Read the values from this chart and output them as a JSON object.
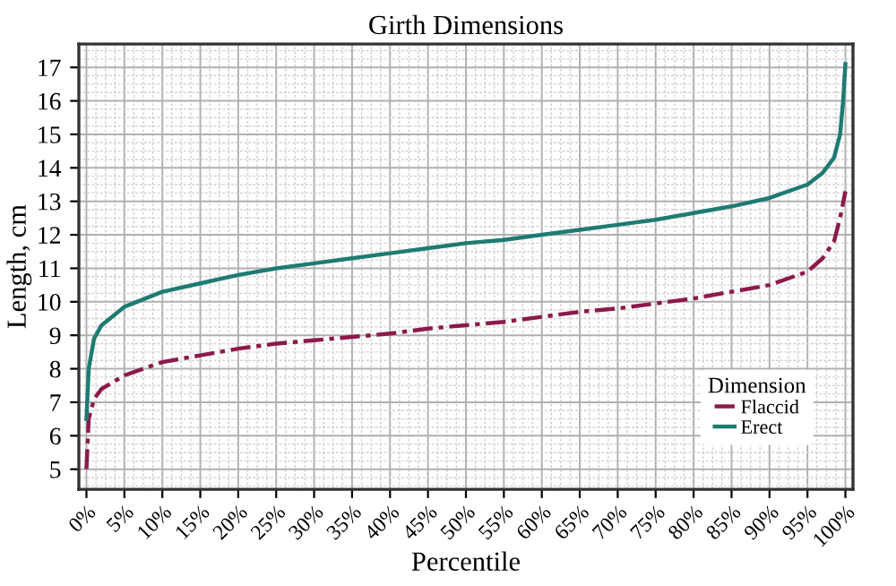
{
  "chart_data": {
    "type": "line",
    "title": "Girth Dimensions",
    "xlabel": "Percentile",
    "ylabel": "Length, cm",
    "legend_title": "Dimension",
    "xlim": [
      -1,
      101
    ],
    "ylim": [
      4.4,
      17.7
    ],
    "xticks": [
      {
        "value": 0,
        "label": "0%"
      },
      {
        "value": 5,
        "label": "5%"
      },
      {
        "value": 10,
        "label": "10%"
      },
      {
        "value": 15,
        "label": "15%"
      },
      {
        "value": 20,
        "label": "20%"
      },
      {
        "value": 25,
        "label": "25%"
      },
      {
        "value": 30,
        "label": "30%"
      },
      {
        "value": 35,
        "label": "35%"
      },
      {
        "value": 40,
        "label": "40%"
      },
      {
        "value": 45,
        "label": "45%"
      },
      {
        "value": 50,
        "label": "50%"
      },
      {
        "value": 55,
        "label": "55%"
      },
      {
        "value": 60,
        "label": "60%"
      },
      {
        "value": 65,
        "label": "65%"
      },
      {
        "value": 70,
        "label": "70%"
      },
      {
        "value": 75,
        "label": "75%"
      },
      {
        "value": 80,
        "label": "80%"
      },
      {
        "value": 85,
        "label": "85%"
      },
      {
        "value": 90,
        "label": "90%"
      },
      {
        "value": 95,
        "label": "95%"
      },
      {
        "value": 100,
        "label": "100%"
      }
    ],
    "yticks": [
      5,
      6,
      7,
      8,
      9,
      10,
      11,
      12,
      13,
      14,
      15,
      16,
      17
    ],
    "grid": true,
    "legend": "bottom right",
    "series": [
      {
        "name": "Flaccid",
        "color": "#8b1a4a",
        "line_style": "dashed",
        "x": [
          0,
          0.3,
          1,
          2,
          5,
          10,
          15,
          20,
          25,
          30,
          35,
          40,
          45,
          50,
          55,
          60,
          65,
          70,
          75,
          80,
          85,
          90,
          95,
          97,
          98.5,
          99.3,
          100
        ],
        "values": [
          5.0,
          6.5,
          7.1,
          7.4,
          7.8,
          8.2,
          8.4,
          8.6,
          8.75,
          8.85,
          8.95,
          9.05,
          9.2,
          9.3,
          9.4,
          9.55,
          9.7,
          9.8,
          9.95,
          10.1,
          10.3,
          10.5,
          10.9,
          11.3,
          11.8,
          12.5,
          13.3
        ]
      },
      {
        "name": "Erect",
        "color": "#1e7b72",
        "line_style": "solid",
        "x": [
          0,
          0.3,
          1,
          2,
          5,
          10,
          15,
          20,
          25,
          30,
          35,
          40,
          45,
          50,
          55,
          60,
          65,
          70,
          75,
          80,
          85,
          90,
          95,
          97,
          98.5,
          99.3,
          99.7,
          100
        ],
        "values": [
          6.5,
          8.0,
          8.9,
          9.3,
          9.85,
          10.3,
          10.55,
          10.8,
          11.0,
          11.15,
          11.3,
          11.45,
          11.6,
          11.75,
          11.85,
          12.0,
          12.15,
          12.3,
          12.45,
          12.65,
          12.85,
          13.1,
          13.5,
          13.85,
          14.3,
          15.0,
          16.0,
          17.1
        ]
      }
    ]
  }
}
